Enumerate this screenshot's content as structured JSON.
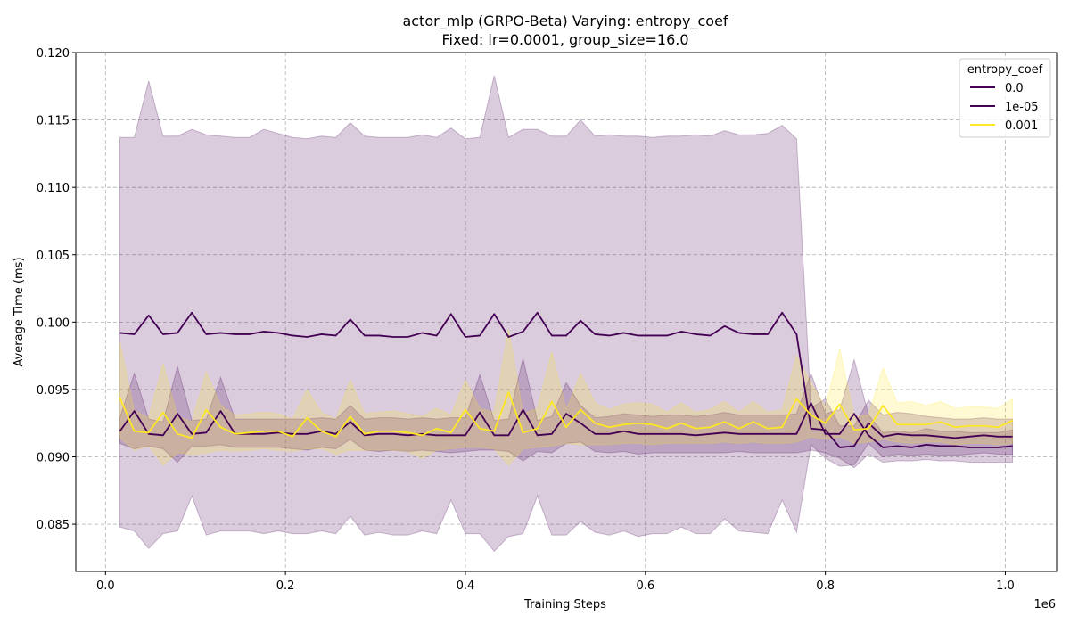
{
  "chart_data": {
    "type": "line",
    "title": "actor_mlp (GRPO-Beta) Varying: entropy_coef",
    "subtitle": "Fixed: lr=0.0001, group_size=16.0",
    "xlabel": "Training Steps",
    "ylabel": "Average Time (ms)",
    "x_scale_label": "1e6",
    "xlim": [
      -0.033,
      1.057
    ],
    "ylim": [
      0.0815,
      0.12
    ],
    "xticks": [
      0.0,
      0.2,
      0.4,
      0.6,
      0.8,
      1.0
    ],
    "xtick_labels": [
      "0.0",
      "0.2",
      "0.4",
      "0.6",
      "0.8",
      "1.0"
    ],
    "yticks": [
      0.085,
      0.09,
      0.095,
      0.1,
      0.105,
      0.11,
      0.115,
      0.12
    ],
    "ytick_labels": [
      "0.085",
      "0.090",
      "0.095",
      "0.100",
      "0.105",
      "0.110",
      "0.115",
      "0.120"
    ],
    "grid": true,
    "legend_title": "entropy_coef",
    "legend_position": "top-right",
    "x": [
      0.016,
      0.032,
      0.048,
      0.064,
      0.08,
      0.096,
      0.112,
      0.128,
      0.144,
      0.16,
      0.176,
      0.192,
      0.208,
      0.224,
      0.24,
      0.256,
      0.272,
      0.288,
      0.304,
      0.32,
      0.336,
      0.352,
      0.368,
      0.384,
      0.4,
      0.416,
      0.432,
      0.448,
      0.464,
      0.48,
      0.496,
      0.512,
      0.528,
      0.544,
      0.56,
      0.576,
      0.592,
      0.608,
      0.624,
      0.64,
      0.656,
      0.672,
      0.688,
      0.704,
      0.72,
      0.736,
      0.752,
      0.768,
      0.784,
      0.8,
      0.816,
      0.832,
      0.848,
      0.864,
      0.88,
      0.896,
      0.912,
      0.928,
      0.944,
      0.96,
      0.976,
      0.992,
      1.008
    ],
    "series": [
      {
        "name": "0.0",
        "color": "#440154",
        "values": [
          0.0992,
          0.0991,
          0.1005,
          0.0991,
          0.0992,
          0.1007,
          0.0991,
          0.0992,
          0.0991,
          0.0991,
          0.0993,
          0.0992,
          0.099,
          0.0989,
          0.0991,
          0.099,
          0.1002,
          0.099,
          0.099,
          0.0989,
          0.0989,
          0.0992,
          0.099,
          0.1006,
          0.0989,
          0.099,
          0.1006,
          0.0989,
          0.0993,
          0.1007,
          0.099,
          0.099,
          0.1001,
          0.0991,
          0.099,
          0.0992,
          0.099,
          0.099,
          0.099,
          0.0993,
          0.0991,
          0.099,
          0.0997,
          0.0992,
          0.0991,
          0.0991,
          0.1007,
          0.0991,
          0.0921,
          0.092,
          0.0907,
          0.0908,
          0.0925,
          0.0915,
          0.0917,
          0.0916,
          0.0916,
          0.0915,
          0.0914,
          0.0915,
          0.0916,
          0.0915,
          0.0915
        ],
        "lower": [
          0.0848,
          0.0845,
          0.0832,
          0.0843,
          0.0845,
          0.0871,
          0.0842,
          0.0845,
          0.0845,
          0.0845,
          0.0843,
          0.0845,
          0.0843,
          0.0843,
          0.0845,
          0.0843,
          0.0856,
          0.0842,
          0.0844,
          0.0842,
          0.0842,
          0.0845,
          0.0843,
          0.0868,
          0.0843,
          0.0843,
          0.083,
          0.0841,
          0.0843,
          0.0871,
          0.0842,
          0.0842,
          0.0852,
          0.0844,
          0.0842,
          0.0845,
          0.0841,
          0.0843,
          0.0843,
          0.0848,
          0.0843,
          0.0843,
          0.0854,
          0.0845,
          0.0844,
          0.0843,
          0.0868,
          0.0844,
          0.0909,
          0.0899,
          0.0893,
          0.0894,
          0.091,
          0.09,
          0.0902,
          0.0901,
          0.0902,
          0.0901,
          0.0901,
          0.0902,
          0.0903,
          0.0902,
          0.0902
        ],
        "upper": [
          0.1137,
          0.1137,
          0.1179,
          0.1138,
          0.1138,
          0.1143,
          0.1139,
          0.1138,
          0.1137,
          0.1137,
          0.1143,
          0.114,
          0.1137,
          0.1136,
          0.1138,
          0.1137,
          0.1148,
          0.1138,
          0.1137,
          0.1137,
          0.1137,
          0.1139,
          0.1137,
          0.1144,
          0.1136,
          0.1137,
          0.1183,
          0.1137,
          0.1143,
          0.1143,
          0.1138,
          0.1138,
          0.115,
          0.1138,
          0.1139,
          0.1138,
          0.1138,
          0.1137,
          0.1138,
          0.1138,
          0.1139,
          0.1138,
          0.1142,
          0.1139,
          0.1139,
          0.114,
          0.1146,
          0.1136,
          0.0936,
          0.0943,
          0.0923,
          0.0923,
          0.0942,
          0.0931,
          0.0933,
          0.0932,
          0.093,
          0.0929,
          0.0928,
          0.0928,
          0.0929,
          0.0928,
          0.0928
        ]
      },
      {
        "name": "1e-05",
        "color": "#440154",
        "values": [
          0.0919,
          0.0934,
          0.0917,
          0.0916,
          0.0932,
          0.0917,
          0.0918,
          0.0934,
          0.0917,
          0.0917,
          0.0917,
          0.0918,
          0.0917,
          0.0917,
          0.0919,
          0.0917,
          0.0926,
          0.0916,
          0.0917,
          0.0917,
          0.0916,
          0.0917,
          0.0916,
          0.0916,
          0.0916,
          0.0933,
          0.0916,
          0.0916,
          0.0935,
          0.0916,
          0.0917,
          0.0932,
          0.0925,
          0.0917,
          0.0917,
          0.0919,
          0.0917,
          0.0917,
          0.0917,
          0.0917,
          0.0916,
          0.0917,
          0.0918,
          0.0917,
          0.0917,
          0.0917,
          0.0917,
          0.0917,
          0.094,
          0.0917,
          0.0917,
          0.0932,
          0.0916,
          0.0907,
          0.0908,
          0.0907,
          0.0909,
          0.0908,
          0.0908,
          0.0907,
          0.0907,
          0.0907,
          0.0908
        ],
        "lower": [
          0.091,
          0.0906,
          0.0908,
          0.0906,
          0.0896,
          0.0908,
          0.0908,
          0.0909,
          0.0907,
          0.0907,
          0.0907,
          0.0907,
          0.0906,
          0.0905,
          0.0907,
          0.0906,
          0.0913,
          0.0905,
          0.0904,
          0.0905,
          0.0904,
          0.0905,
          0.0904,
          0.0903,
          0.0904,
          0.0905,
          0.0905,
          0.0904,
          0.0897,
          0.0904,
          0.0903,
          0.091,
          0.0911,
          0.0904,
          0.0903,
          0.0904,
          0.0902,
          0.0903,
          0.0903,
          0.0903,
          0.0903,
          0.0903,
          0.0903,
          0.0904,
          0.0903,
          0.0903,
          0.0903,
          0.0903,
          0.0905,
          0.0903,
          0.0899,
          0.0892,
          0.0902,
          0.0896,
          0.0897,
          0.0897,
          0.0898,
          0.0897,
          0.0897,
          0.0896,
          0.0896,
          0.0896,
          0.0896
        ],
        "upper": [
          0.0929,
          0.0962,
          0.0928,
          0.0926,
          0.0967,
          0.0927,
          0.0928,
          0.0959,
          0.0928,
          0.0928,
          0.0928,
          0.0928,
          0.0928,
          0.0928,
          0.0929,
          0.0928,
          0.0938,
          0.0928,
          0.0929,
          0.0929,
          0.0928,
          0.0929,
          0.0928,
          0.0929,
          0.0929,
          0.0961,
          0.0927,
          0.0928,
          0.0973,
          0.0927,
          0.093,
          0.0955,
          0.0938,
          0.0929,
          0.093,
          0.0932,
          0.0931,
          0.093,
          0.0931,
          0.0931,
          0.093,
          0.0931,
          0.0933,
          0.0931,
          0.0931,
          0.0931,
          0.0931,
          0.0932,
          0.0962,
          0.0932,
          0.0935,
          0.0972,
          0.0931,
          0.0918,
          0.0919,
          0.0918,
          0.0921,
          0.0919,
          0.0919,
          0.0918,
          0.0918,
          0.0918,
          0.092
        ]
      },
      {
        "name": "0.001",
        "color": "#fde725",
        "values": [
          0.0944,
          0.0919,
          0.0918,
          0.0933,
          0.0917,
          0.0914,
          0.0935,
          0.0922,
          0.0917,
          0.0918,
          0.0919,
          0.0919,
          0.0915,
          0.0929,
          0.0919,
          0.0915,
          0.093,
          0.0917,
          0.0919,
          0.0919,
          0.0918,
          0.0916,
          0.0921,
          0.0918,
          0.0935,
          0.0921,
          0.0919,
          0.0948,
          0.0918,
          0.0921,
          0.0941,
          0.0922,
          0.0935,
          0.0925,
          0.0922,
          0.0924,
          0.0925,
          0.0924,
          0.0921,
          0.0925,
          0.0921,
          0.0922,
          0.0926,
          0.0921,
          0.0926,
          0.0921,
          0.0922,
          0.0943,
          0.0931,
          0.0925,
          0.0939,
          0.092,
          0.0921,
          0.0938,
          0.0924,
          0.0924,
          0.0924,
          0.0926,
          0.0922,
          0.0923,
          0.0923,
          0.0922,
          0.0927
        ],
        "lower": [
          0.0914,
          0.0905,
          0.0908,
          0.0894,
          0.0903,
          0.0902,
          0.0903,
          0.0905,
          0.0904,
          0.0905,
          0.0906,
          0.0905,
          0.0904,
          0.0906,
          0.0906,
          0.0902,
          0.0905,
          0.0905,
          0.0905,
          0.0905,
          0.0904,
          0.0899,
          0.0905,
          0.0906,
          0.0907,
          0.0907,
          0.0906,
          0.0894,
          0.0906,
          0.0907,
          0.0908,
          0.091,
          0.0909,
          0.0909,
          0.0909,
          0.091,
          0.091,
          0.0909,
          0.091,
          0.091,
          0.091,
          0.091,
          0.0911,
          0.091,
          0.0911,
          0.091,
          0.091,
          0.0911,
          0.0915,
          0.0913,
          0.0915,
          0.091,
          0.0911,
          0.0913,
          0.0911,
          0.091,
          0.0911,
          0.0911,
          0.0909,
          0.091,
          0.091,
          0.0909,
          0.091
        ],
        "upper": [
          0.0985,
          0.0934,
          0.0929,
          0.0969,
          0.093,
          0.0926,
          0.0963,
          0.0938,
          0.0931,
          0.0932,
          0.0933,
          0.0932,
          0.0928,
          0.095,
          0.0933,
          0.0928,
          0.0957,
          0.0932,
          0.0933,
          0.0934,
          0.0932,
          0.093,
          0.0936,
          0.0931,
          0.0957,
          0.0936,
          0.0933,
          0.0995,
          0.0932,
          0.0936,
          0.0978,
          0.0935,
          0.0962,
          0.094,
          0.0935,
          0.0939,
          0.094,
          0.0939,
          0.0933,
          0.094,
          0.0933,
          0.0935,
          0.0941,
          0.0933,
          0.0941,
          0.0933,
          0.0935,
          0.0975,
          0.0955,
          0.0937,
          0.098,
          0.093,
          0.0931,
          0.0966,
          0.094,
          0.0941,
          0.0938,
          0.0941,
          0.0936,
          0.0937,
          0.0937,
          0.0936,
          0.0943
        ]
      }
    ]
  }
}
